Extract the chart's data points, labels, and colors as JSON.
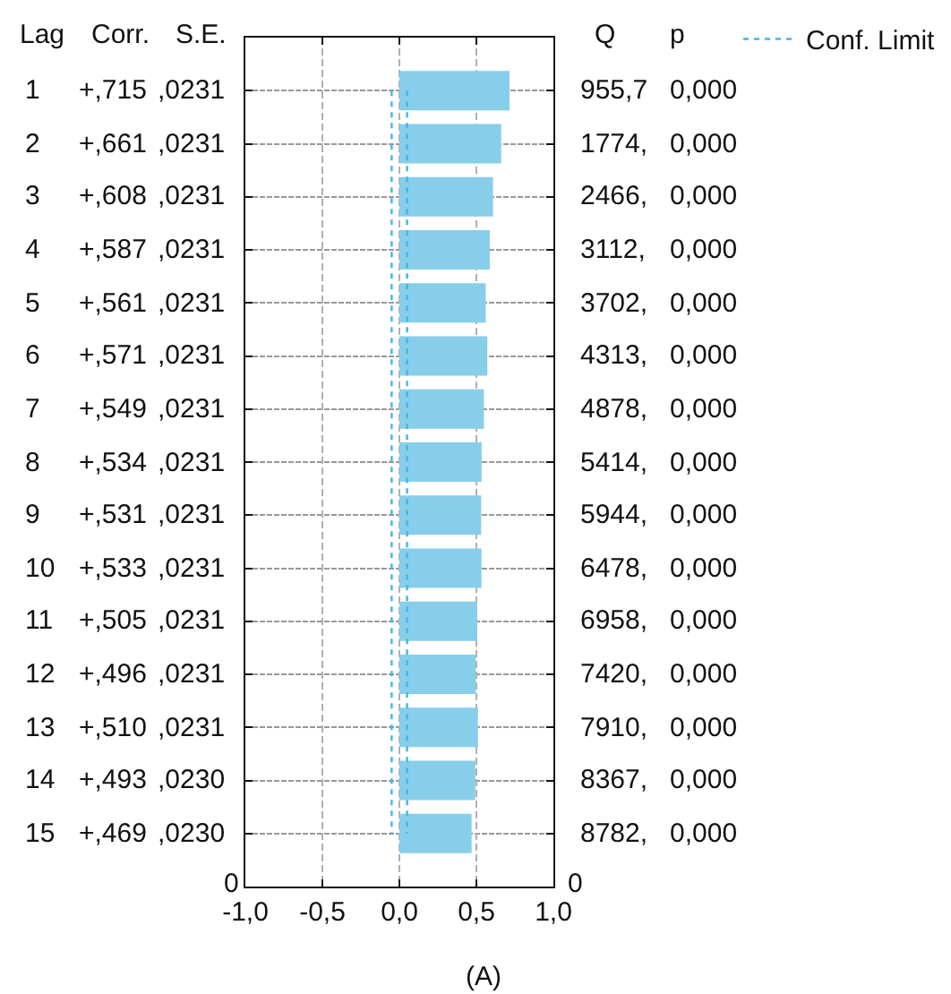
{
  "chart_data": {
    "type": "bar",
    "orientation": "horizontal",
    "categories": [
      null,
      null,
      null,
      null,
      null,
      null,
      null,
      null,
      null,
      null,
      null,
      null,
      null,
      null,
      null
    ],
    "xlim": [
      -1,
      1
    ],
    "xticks": [
      {
        "value": -1,
        "label": "-1,0"
      },
      {
        "value": -0.5,
        "label": "-0,5"
      },
      {
        "value": 0,
        "label": "0,0"
      },
      {
        "value": 0.5,
        "label": "0,5"
      },
      {
        "value": 1,
        "label": "1,0"
      }
    ],
    "grid": true,
    "legend": "top right",
    "series": [
      {
        "color": "#87ceeb",
        "values": [
          0.715,
          0.661,
          0.608,
          0.587,
          0.561,
          0.571,
          0.549,
          0.534,
          0.531,
          0.533,
          0.505,
          0.496,
          0.51,
          0.493,
          0.469
        ]
      },
      {
        "name": "Conf. Limit",
        "type": "line",
        "color": "#45b4e6",
        "line_style": "dotted",
        "values": [
          -0.05,
          -0.05,
          -0.05,
          -0.05,
          -0.05,
          -0.05,
          -0.05,
          -0.05,
          -0.05,
          -0.05,
          -0.05,
          -0.05,
          -0.05,
          -0.05,
          -0.05
        ]
      },
      {
        "type": "line",
        "color": "#45b4e6",
        "line_style": "dotted",
        "values": [
          0.05,
          0.05,
          0.05,
          0.05,
          0.05,
          0.05,
          0.05,
          0.05,
          0.05,
          0.05,
          0.05,
          0.05,
          0.05,
          0.05,
          0.05
        ]
      }
    ],
    "annotations": [
      "Lag",
      "Corr.",
      "S.E.",
      "Q",
      "p",
      "1",
      "+,715",
      ",0231",
      "955,7",
      "0,000",
      "2",
      "+,661",
      ",0231",
      "1774,",
      "0,000",
      "3",
      "+,608",
      ",0231",
      "2466,",
      "0,000",
      "4",
      "+,587",
      ",0231",
      "3112,",
      "0,000",
      "5",
      "+,561",
      ",0231",
      "3702,",
      "0,000",
      "6",
      "+,571",
      ",0231",
      "4313,",
      "0,000",
      "7",
      "+,549",
      ",0231",
      "4878,",
      "0,000",
      "8",
      "+,534",
      ",0231",
      "5414,",
      "0,000",
      "9",
      "+,531",
      ",0231",
      "5944,",
      "0,000",
      "10",
      "+,533",
      ",0231",
      "6478,",
      "0,000",
      "11",
      "+,505",
      ",0231",
      "6958,",
      "0,000",
      "12",
      "+,496",
      ",0231",
      "7420,",
      "0,000",
      "13",
      "+,510",
      ",0231",
      "7910,",
      "0,000",
      "14",
      "+,493",
      ",0230",
      "8367,",
      "0,000",
      "15",
      "+,469",
      ",0230",
      "8782,",
      "0,000",
      "0",
      "0",
      "(A)"
    ]
  }
}
